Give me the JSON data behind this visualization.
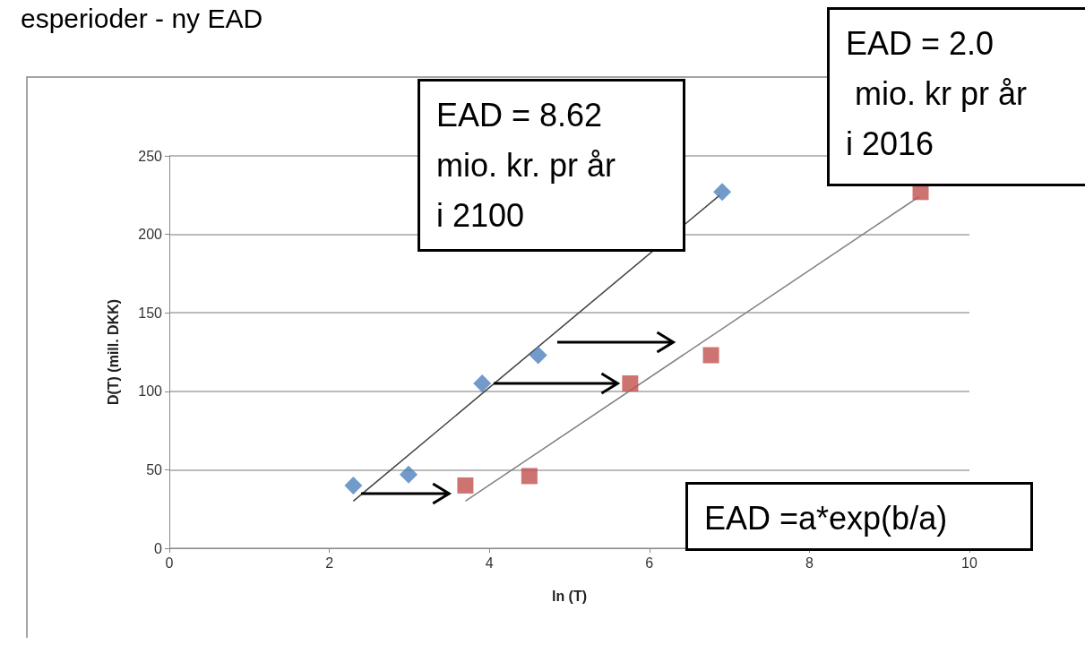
{
  "chart_data": {
    "type": "scatter",
    "title": "esperioder - ny EAD",
    "xlabel": "ln (T)",
    "ylabel": "D(T) (mill. DKK)",
    "series": [
      {
        "color": "#4f81bd",
        "marker": "diamond",
        "x": [
          2.3,
          2.99,
          3.91,
          4.61,
          6.91
        ],
        "values": [
          40,
          47,
          105,
          123,
          227
        ]
      },
      {
        "color": "#c0504d",
        "marker": "square",
        "x": [
          3.7,
          4.5,
          5.76,
          6.77,
          9.39
        ],
        "values": [
          40,
          46,
          105,
          123,
          227
        ]
      },
      {
        "type": "line",
        "color": "#404040",
        "marker": "none",
        "x": [
          2.3,
          6.88
        ],
        "values": [
          30,
          225
        ]
      },
      {
        "type": "line",
        "color": "#808080",
        "marker": "none",
        "x": [
          3.7,
          9.37
        ],
        "values": [
          30,
          224
        ]
      }
    ],
    "annotations": [
      "EAD = 8.62\nmio. kr. pr år\ni 2100",
      "EAD = 2.0\n mio. kr pr år\ni 2016",
      "EAD =a*exp(b/a)"
    ],
    "xlim": [
      0,
      10
    ],
    "xticks": [
      0,
      2,
      4,
      6,
      8,
      10
    ],
    "ylim": [
      0,
      250
    ],
    "yticks": [
      0,
      50,
      100,
      150,
      200,
      250
    ],
    "grid": "y"
  }
}
